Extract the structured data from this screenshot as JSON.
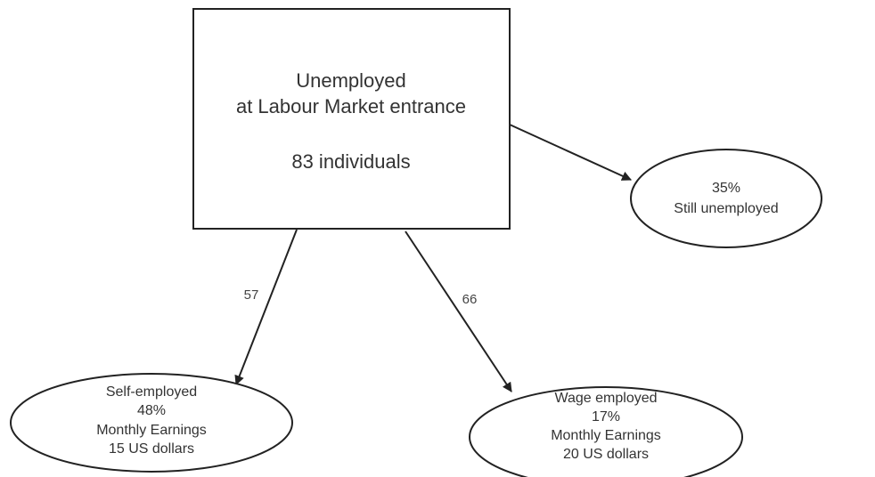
{
  "nodes": [
    {
      "lines": [
        "Unemployed",
        "at Labour Market entrance",
        "83 individuals"
      ]
    },
    {
      "lines": [
        "35%",
        "Still unemployed"
      ]
    },
    {
      "lines": [
        "Self-employed",
        "48%",
        "Monthly Earnings",
        "15 US dollars"
      ]
    },
    {
      "lines": [
        "Wage employed",
        "17%",
        "Monthly Earnings",
        "20 US dollars"
      ]
    }
  ],
  "edges": [
    {
      "label": "57"
    },
    {
      "label": "66"
    }
  ]
}
